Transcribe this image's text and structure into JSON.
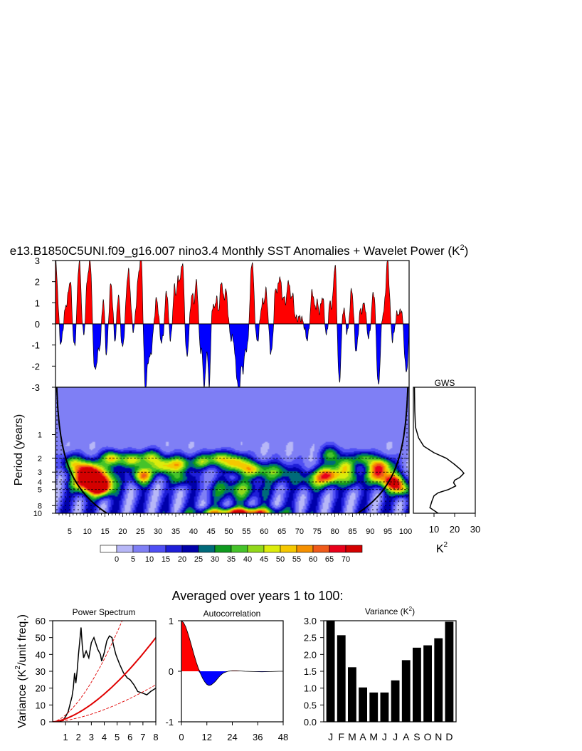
{
  "title": {
    "main": "e13.B1850C5UNI.f09_g16.007 nino3.4 Monthly SST Anomalies + Wavelet Power (K",
    "sup": "2",
    "close": ")"
  },
  "subtitle": "Averaged over years 1 to 100:",
  "colors": {
    "positive": "#ff0000",
    "negative": "#0000ff",
    "trend": "#e00000"
  },
  "chart_data": [
    {
      "id": "sst_timeseries",
      "type": "area",
      "xlim": [
        1,
        101
      ],
      "ylim": [
        -3,
        3
      ],
      "yticks": [
        "3",
        "2",
        "1",
        "0",
        "-1",
        "-2",
        "-3"
      ],
      "ytick_values": [
        3,
        2,
        1,
        0,
        -1,
        -2,
        -3
      ],
      "events": [
        {
          "t": 1.0,
          "v": 3.0,
          "w": 0.6
        },
        {
          "t": 2.5,
          "v": -1.1,
          "w": 0.5
        },
        {
          "t": 4.0,
          "v": 0.8,
          "w": 0.6
        },
        {
          "t": 5.2,
          "v": 2.0,
          "w": 0.5
        },
        {
          "t": 6.3,
          "v": -1.3,
          "w": 0.5
        },
        {
          "t": 7.7,
          "v": 3.0,
          "w": 0.5
        },
        {
          "t": 8.9,
          "v": -0.7,
          "w": 0.4
        },
        {
          "t": 10.0,
          "v": 2.0,
          "w": 0.4
        },
        {
          "t": 10.9,
          "v": 3.0,
          "w": 0.4
        },
        {
          "t": 12.2,
          "v": -2.2,
          "w": 0.6
        },
        {
          "t": 13.6,
          "v": -1.0,
          "w": 0.5
        },
        {
          "t": 14.5,
          "v": 1.5,
          "w": 0.4
        },
        {
          "t": 15.4,
          "v": -1.6,
          "w": 0.4
        },
        {
          "t": 16.7,
          "v": 1.9,
          "w": 0.5
        },
        {
          "t": 17.8,
          "v": -1.0,
          "w": 0.4
        },
        {
          "t": 18.8,
          "v": 1.5,
          "w": 0.4
        },
        {
          "t": 20.0,
          "v": -1.2,
          "w": 0.5
        },
        {
          "t": 21.6,
          "v": 2.5,
          "w": 0.6
        },
        {
          "t": 22.9,
          "v": -0.5,
          "w": 0.4
        },
        {
          "t": 24.4,
          "v": 2.0,
          "w": 0.5
        },
        {
          "t": 25.3,
          "v": 3.0,
          "w": 0.4
        },
        {
          "t": 26.4,
          "v": -3.0,
          "w": 0.5
        },
        {
          "t": 27.8,
          "v": -1.5,
          "w": 0.6
        },
        {
          "t": 29.6,
          "v": 1.2,
          "w": 0.5
        },
        {
          "t": 31.0,
          "v": -0.9,
          "w": 0.5
        },
        {
          "t": 32.4,
          "v": 1.6,
          "w": 0.4
        },
        {
          "t": 33.6,
          "v": -0.8,
          "w": 0.4
        },
        {
          "t": 34.6,
          "v": 1.7,
          "w": 0.4
        },
        {
          "t": 35.7,
          "v": 2.0,
          "w": 0.4
        },
        {
          "t": 36.9,
          "v": 3.0,
          "w": 0.5
        },
        {
          "t": 38.1,
          "v": -1.7,
          "w": 0.5
        },
        {
          "t": 39.6,
          "v": 1.4,
          "w": 0.5
        },
        {
          "t": 40.9,
          "v": 2.0,
          "w": 0.4
        },
        {
          "t": 42.0,
          "v": -1.2,
          "w": 0.4
        },
        {
          "t": 43.1,
          "v": -3.0,
          "w": 0.4
        },
        {
          "t": 44.5,
          "v": -3.0,
          "w": 0.4
        },
        {
          "t": 45.3,
          "v": 1.1,
          "w": 0.4
        },
        {
          "t": 46.5,
          "v": 1.2,
          "w": 0.4
        },
        {
          "t": 47.9,
          "v": 2.0,
          "w": 0.4
        },
        {
          "t": 49.2,
          "v": 1.6,
          "w": 0.5
        },
        {
          "t": 50.7,
          "v": -0.7,
          "w": 0.6
        },
        {
          "t": 52.0,
          "v": -1.4,
          "w": 0.4
        },
        {
          "t": 52.9,
          "v": -3.0,
          "w": 0.5
        },
        {
          "t": 54.1,
          "v": -2.0,
          "w": 0.4
        },
        {
          "t": 55.2,
          "v": -1.2,
          "w": 0.4
        },
        {
          "t": 56.6,
          "v": 3.0,
          "w": 0.5
        },
        {
          "t": 58.0,
          "v": -0.9,
          "w": 0.5
        },
        {
          "t": 59.5,
          "v": 1.0,
          "w": 0.5
        },
        {
          "t": 60.6,
          "v": 1.5,
          "w": 0.4
        },
        {
          "t": 62.0,
          "v": -1.4,
          "w": 0.5
        },
        {
          "t": 63.2,
          "v": 1.6,
          "w": 0.4
        },
        {
          "t": 64.4,
          "v": 2.2,
          "w": 0.5
        },
        {
          "t": 65.7,
          "v": 1.1,
          "w": 0.5
        },
        {
          "t": 66.9,
          "v": 2.0,
          "w": 0.4
        },
        {
          "t": 68.0,
          "v": 1.3,
          "w": 0.4
        },
        {
          "t": 70.0,
          "v": 0.3,
          "w": 1.2
        },
        {
          "t": 72.2,
          "v": -0.8,
          "w": 0.6
        },
        {
          "t": 73.6,
          "v": 1.6,
          "w": 0.5
        },
        {
          "t": 75.0,
          "v": 1.0,
          "w": 0.4
        },
        {
          "t": 76.5,
          "v": 1.3,
          "w": 0.5
        },
        {
          "t": 77.6,
          "v": -0.7,
          "w": 0.4
        },
        {
          "t": 78.6,
          "v": 1.0,
          "w": 0.4
        },
        {
          "t": 80.1,
          "v": 3.0,
          "w": 0.5
        },
        {
          "t": 81.2,
          "v": -3.0,
          "w": 0.5
        },
        {
          "t": 82.4,
          "v": 0.9,
          "w": 0.4
        },
        {
          "t": 83.6,
          "v": -0.5,
          "w": 0.4
        },
        {
          "t": 84.8,
          "v": 1.7,
          "w": 0.5
        },
        {
          "t": 86.0,
          "v": -1.4,
          "w": 0.5
        },
        {
          "t": 87.2,
          "v": 0.7,
          "w": 0.4
        },
        {
          "t": 88.3,
          "v": 1.0,
          "w": 0.4
        },
        {
          "t": 89.6,
          "v": -0.7,
          "w": 0.4
        },
        {
          "t": 91.0,
          "v": 1.6,
          "w": 0.5
        },
        {
          "t": 92.3,
          "v": -3.0,
          "w": 0.5
        },
        {
          "t": 93.5,
          "v": 0.5,
          "w": 0.4
        },
        {
          "t": 94.9,
          "v": 3.0,
          "w": 0.5
        },
        {
          "t": 96.3,
          "v": -0.8,
          "w": 0.4
        },
        {
          "t": 97.7,
          "v": 0.5,
          "w": 0.4
        },
        {
          "t": 98.8,
          "v": 0.7,
          "w": 0.4
        },
        {
          "t": 100.2,
          "v": -2.3,
          "w": 0.5
        }
      ]
    },
    {
      "id": "wavelet_power",
      "type": "heatmap",
      "ylabel": "Period (years)",
      "xlim": [
        1,
        101
      ],
      "ylim": [
        0.25,
        10
      ],
      "yscale": "log",
      "yticks": [
        "1",
        "2",
        "3",
        "4",
        "5",
        "8",
        "10"
      ],
      "ytick_values": [
        1,
        2,
        3,
        4,
        5,
        8,
        10
      ],
      "xticks": [
        "5",
        "10",
        "15",
        "20",
        "25",
        "30",
        "35",
        "40",
        "45",
        "50",
        "55",
        "60",
        "65",
        "70",
        "75",
        "80",
        "85",
        "90",
        "95",
        "100"
      ],
      "xtick_values": [
        5,
        10,
        15,
        20,
        25,
        30,
        35,
        40,
        45,
        50,
        55,
        60,
        65,
        70,
        75,
        80,
        85,
        90,
        95,
        100
      ],
      "reference_periods": [
        2,
        3,
        4,
        5
      ],
      "blobs": [
        {
          "t": 10.0,
          "p": 3.0,
          "a": 72,
          "st": 2.2,
          "sl": 0.22
        },
        {
          "t": 13.5,
          "p": 4.7,
          "a": 70,
          "st": 2.4,
          "sl": 0.18
        },
        {
          "t": 8.5,
          "p": 4.2,
          "a": 45,
          "st": 2.0,
          "sl": 0.2
        },
        {
          "t": 15.0,
          "p": 3.5,
          "a": 38,
          "st": 2.5,
          "sl": 0.25
        },
        {
          "t": 5.5,
          "p": 2.3,
          "a": 32,
          "st": 2.0,
          "sl": 0.18
        },
        {
          "t": 17.0,
          "p": 2.0,
          "a": 45,
          "st": 2.0,
          "sl": 0.15
        },
        {
          "t": 23.0,
          "p": 2.1,
          "a": 40,
          "st": 2.2,
          "sl": 0.15
        },
        {
          "t": 25.5,
          "p": 3.3,
          "a": 50,
          "st": 2.0,
          "sl": 0.18
        },
        {
          "t": 28.0,
          "p": 1.9,
          "a": 30,
          "st": 2.0,
          "sl": 0.15
        },
        {
          "t": 31.0,
          "p": 2.5,
          "a": 40,
          "st": 2.0,
          "sl": 0.18
        },
        {
          "t": 36.0,
          "p": 2.4,
          "a": 42,
          "st": 2.3,
          "sl": 0.18
        },
        {
          "t": 36.5,
          "p": 3.7,
          "a": 25,
          "st": 2.0,
          "sl": 0.15
        },
        {
          "t": 42.5,
          "p": 2.2,
          "a": 32,
          "st": 2.0,
          "sl": 0.15
        },
        {
          "t": 47.0,
          "p": 2.0,
          "a": 35,
          "st": 2.0,
          "sl": 0.15
        },
        {
          "t": 52.0,
          "p": 2.3,
          "a": 48,
          "st": 2.4,
          "sl": 0.18
        },
        {
          "t": 57.0,
          "p": 2.8,
          "a": 38,
          "st": 2.4,
          "sl": 0.16
        },
        {
          "t": 52.5,
          "p": 5.0,
          "a": 26,
          "st": 5.5,
          "sl": 0.22
        },
        {
          "t": 55.0,
          "p": 9.8,
          "a": 55,
          "st": 6.0,
          "sl": 0.1
        },
        {
          "t": 45.0,
          "p": 9.8,
          "a": 18,
          "st": 5.0,
          "sl": 0.08
        },
        {
          "t": 64.0,
          "p": 3.0,
          "a": 28,
          "st": 3.0,
          "sl": 0.2
        },
        {
          "t": 74.0,
          "p": 3.8,
          "a": 26,
          "st": 3.5,
          "sl": 0.2
        },
        {
          "t": 79.0,
          "p": 1.8,
          "a": 30,
          "st": 2.0,
          "sl": 0.18
        },
        {
          "t": 78.5,
          "p": 3.3,
          "a": 50,
          "st": 2.5,
          "sl": 0.18
        },
        {
          "t": 83.0,
          "p": 2.5,
          "a": 32,
          "st": 2.0,
          "sl": 0.18
        },
        {
          "t": 85.0,
          "p": 3.7,
          "a": 25,
          "st": 2.0,
          "sl": 0.18
        },
        {
          "t": 88.0,
          "p": 2.0,
          "a": 30,
          "st": 2.0,
          "sl": 0.15
        },
        {
          "t": 93.0,
          "p": 2.5,
          "a": 50,
          "st": 2.3,
          "sl": 0.18
        },
        {
          "t": 92.0,
          "p": 3.4,
          "a": 40,
          "st": 2.0,
          "sl": 0.18
        },
        {
          "t": 96.5,
          "p": 4.0,
          "a": 58,
          "st": 2.2,
          "sl": 0.18
        },
        {
          "t": 99.0,
          "p": 5.0,
          "a": 35,
          "st": 1.6,
          "sl": 0.15
        }
      ]
    },
    {
      "id": "global_wavelet_spectrum",
      "type": "line",
      "title": "GWS",
      "xlabel": "K",
      "xlabel_sup": "2",
      "xlim": [
        0,
        30
      ],
      "xticks": [
        "10",
        "20",
        "30"
      ],
      "xtick_values": [
        10,
        20,
        30
      ],
      "period": [
        0.25,
        0.5,
        0.8,
        1.1,
        1.4,
        1.7,
        2.0,
        2.4,
        2.8,
        3.1,
        3.5,
        3.8,
        4.1,
        4.5,
        5.0,
        5.5,
        6.0,
        7.0,
        8.5,
        10
      ],
      "power": [
        0.5,
        0.7,
        1.0,
        2.5,
        5.0,
        10.0,
        16.0,
        20.0,
        23.0,
        24.5,
        22.5,
        20.0,
        19.5,
        20.5,
        17.0,
        12.0,
        10.0,
        9.0,
        8.0,
        12.0
      ]
    },
    {
      "id": "power_spectrum",
      "type": "line",
      "title": "Power Spectrum",
      "ylabel": "Variance (K",
      "ylabel_sup": "2",
      "ylabel_close": "/unit freq.)",
      "xlim": [
        0,
        8
      ],
      "ylim": [
        0,
        60
      ],
      "xticks": [
        "1",
        "2",
        "3",
        "4",
        "5",
        "6",
        "7",
        "8"
      ],
      "xtick_values": [
        1,
        2,
        3,
        4,
        5,
        6,
        7,
        8
      ],
      "yticks": [
        "0",
        "10",
        "20",
        "30",
        "40",
        "50",
        "60"
      ],
      "ytick_values": [
        0,
        10,
        20,
        30,
        40,
        50,
        60
      ],
      "series": [
        {
          "x": [
            0.5,
            0.8,
            1.0,
            1.2,
            1.4,
            1.5,
            1.6,
            1.7,
            1.8,
            1.9,
            2.0,
            2.1,
            2.2,
            2.3,
            2.4,
            2.6,
            2.8,
            3.0,
            3.2,
            3.5,
            3.7,
            3.8,
            4.0,
            4.2,
            4.4,
            4.6,
            4.7,
            4.9,
            5.0,
            5.2,
            5.5,
            5.8,
            6.0,
            6.3,
            6.6,
            7.0,
            7.3,
            7.6,
            8.0
          ],
          "y": [
            0,
            1,
            3,
            6,
            12,
            15,
            20,
            29,
            23,
            30,
            40,
            48,
            56,
            45,
            38,
            42,
            38,
            47,
            50,
            43,
            40,
            36,
            41,
            48,
            51,
            50,
            46,
            40,
            38,
            34,
            29,
            26,
            25,
            22,
            18,
            17,
            16,
            18,
            20
          ]
        },
        {
          "x": [
            0,
            8
          ],
          "y": [
            0,
            50
          ]
        },
        {
          "x": [
            0,
            8
          ],
          "y": [
            0,
            22
          ]
        },
        {
          "x": [
            0,
            5.5
          ],
          "y": [
            0,
            62
          ]
        }
      ]
    },
    {
      "id": "autocorrelation",
      "type": "area",
      "title": "Autocorrelation",
      "xlim": [
        0,
        48
      ],
      "ylim": [
        -1,
        1
      ],
      "xticks": [
        "0",
        "12",
        "24",
        "36",
        "48"
      ],
      "xtick_values": [
        0,
        12,
        24,
        36,
        48
      ],
      "yticks": [
        "1",
        "0",
        "-1"
      ],
      "ytick_values": [
        1,
        0,
        -1
      ],
      "x": [
        0,
        1,
        2,
        3,
        4,
        5,
        6,
        7,
        8,
        9,
        10,
        11,
        12,
        13,
        14,
        15,
        16,
        17,
        18,
        19,
        20,
        22,
        24,
        26,
        28,
        30,
        34,
        38,
        42,
        46,
        48
      ],
      "y": [
        1.0,
        0.96,
        0.88,
        0.76,
        0.62,
        0.47,
        0.32,
        0.18,
        0.06,
        -0.05,
        -0.14,
        -0.21,
        -0.26,
        -0.28,
        -0.27,
        -0.24,
        -0.2,
        -0.15,
        -0.1,
        -0.06,
        -0.03,
        0,
        0.01,
        0.01,
        0.005,
        0.0,
        -0.005,
        -0.01,
        -0.005,
        0.0,
        0.0
      ]
    },
    {
      "id": "monthly_variance",
      "type": "bar",
      "title": "Variance (K",
      "title_sup": "2",
      "title_close": ")",
      "ylim": [
        0,
        3
      ],
      "yticks": [
        "3.0",
        "2.5",
        "2.0",
        "1.5",
        "1.0",
        "0.5",
        "0.0"
      ],
      "ytick_values": [
        3.0,
        2.5,
        2.0,
        1.5,
        1.0,
        0.5,
        0.0
      ],
      "categories": [
        "J",
        "F",
        "M",
        "A",
        "M",
        "J",
        "J",
        "A",
        "S",
        "O",
        "N",
        "D"
      ],
      "values": [
        3.0,
        2.57,
        1.62,
        1.02,
        0.87,
        0.87,
        1.23,
        1.83,
        2.2,
        2.27,
        2.48,
        2.97
      ]
    }
  ],
  "colorbar": {
    "labels": [
      "0",
      "5",
      "10",
      "15",
      "20",
      "25",
      "30",
      "35",
      "40",
      "45",
      "50",
      "55",
      "60",
      "65",
      "70"
    ],
    "colors": [
      "#ffffff",
      "#b7b7f7",
      "#7f7ff5",
      "#4f4ff4",
      "#1e1ed8",
      "#0000aa",
      "#006a7a",
      "#0f9a1f",
      "#45c32a",
      "#92d81a",
      "#dcec0c",
      "#f5c800",
      "#f59000",
      "#f05a1a",
      "#e8001a",
      "#d40000"
    ]
  }
}
